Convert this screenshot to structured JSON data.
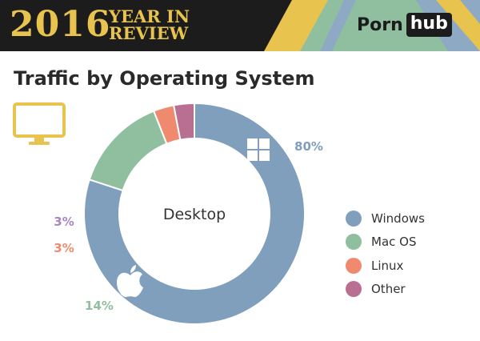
{
  "header": {
    "year": "2016",
    "year_in": "YEAR IN",
    "review": "REVIEW",
    "brand_part1": "Porn",
    "brand_part2": "hub"
  },
  "page": {
    "title": "Traffic by Operating System"
  },
  "icons": {
    "device": "desktop-monitor-icon",
    "windows": "windows-logo-icon",
    "apple": "apple-logo-icon"
  },
  "colors": {
    "banner_bg": "#1c1c1c",
    "gold": "#e8c34d",
    "green_accent": "#8fbf9f",
    "blue_accent": "#8ea9c4"
  },
  "chart_data": {
    "type": "pie",
    "variant": "donut",
    "center_label": "Desktop",
    "categories": [
      "Windows",
      "Mac OS",
      "Linux",
      "Other"
    ],
    "values": [
      80,
      14,
      3,
      3
    ],
    "value_labels": [
      "80%",
      "14%",
      "3%",
      "3%"
    ],
    "colors": [
      "#7f9fbc",
      "#8fbf9f",
      "#f08a6e",
      "#b96f91"
    ],
    "label_colors": [
      "#7f9fbc",
      "#8fbf9f",
      "#f08a6e",
      "#a887c1"
    ],
    "legend_position": "right"
  }
}
